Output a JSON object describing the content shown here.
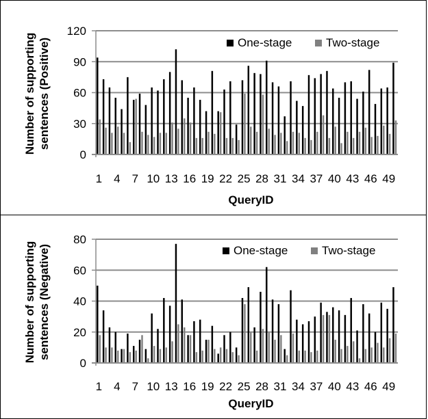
{
  "chart_data": [
    {
      "type": "bar",
      "ylabel": "Number of supporting sentences (Positive)",
      "xlabel": "QueryID",
      "ylim": [
        0,
        120
      ],
      "yticks": [
        0,
        30,
        60,
        90,
        120
      ],
      "grid": true,
      "legend_position": "top-right",
      "categories": [
        1,
        2,
        3,
        4,
        5,
        6,
        7,
        8,
        9,
        10,
        11,
        12,
        13,
        14,
        15,
        16,
        17,
        18,
        19,
        20,
        21,
        22,
        23,
        24,
        25,
        26,
        27,
        28,
        29,
        30,
        31,
        32,
        33,
        34,
        35,
        36,
        37,
        38,
        39,
        40,
        41,
        42,
        43,
        44,
        45,
        46,
        47,
        48,
        49,
        50
      ],
      "xticks": [
        "1",
        "4",
        "7",
        "10",
        "13",
        "16",
        "19",
        "22",
        "25",
        "28",
        "31",
        "34",
        "37",
        "40",
        "43",
        "46",
        "49"
      ],
      "series": [
        {
          "name": "One-stage",
          "color": "#000000",
          "values": [
            94,
            73,
            65,
            55,
            44,
            75,
            53,
            59,
            48,
            65,
            62,
            73,
            80,
            102,
            72,
            55,
            65,
            53,
            42,
            81,
            42,
            63,
            71,
            29,
            72,
            86,
            79,
            78,
            91,
            70,
            66,
            37,
            71,
            52,
            47,
            77,
            74,
            78,
            81,
            64,
            55,
            70,
            71,
            54,
            61,
            82,
            49,
            64,
            65,
            89
          ]
        },
        {
          "name": "Two-stage",
          "color": "#808080",
          "values": [
            34,
            26,
            21,
            27,
            21,
            12,
            54,
            22,
            19,
            17,
            21,
            21,
            31,
            25,
            35,
            31,
            16,
            16,
            22,
            20,
            41,
            16,
            16,
            14,
            59,
            27,
            22,
            58,
            25,
            19,
            21,
            13,
            22,
            21,
            16,
            14,
            22,
            38,
            16,
            27,
            11,
            22,
            16,
            22,
            26,
            17,
            18,
            28,
            20,
            33
          ]
        }
      ]
    },
    {
      "type": "bar",
      "ylabel": "Number of supporting sentences (Negative)",
      "xlabel": "QueryID",
      "ylim": [
        0,
        80
      ],
      "yticks": [
        0,
        20,
        40,
        60,
        80
      ],
      "grid": true,
      "legend_position": "top-right",
      "categories": [
        1,
        2,
        3,
        4,
        5,
        6,
        7,
        8,
        9,
        10,
        11,
        12,
        13,
        14,
        15,
        16,
        17,
        18,
        19,
        20,
        21,
        22,
        23,
        24,
        25,
        26,
        27,
        28,
        29,
        30,
        31,
        32,
        33,
        34,
        35,
        36,
        37,
        38,
        39,
        40,
        41,
        42,
        43,
        44,
        45,
        46,
        47,
        48,
        49,
        50
      ],
      "xticks": [
        "1",
        "4",
        "7",
        "10",
        "13",
        "16",
        "19",
        "22",
        "25",
        "28",
        "31",
        "34",
        "37",
        "40",
        "43",
        "46",
        "49"
      ],
      "series": [
        {
          "name": "One-stage",
          "color": "#000000",
          "values": [
            50,
            34,
            23,
            20,
            9,
            19,
            11,
            15,
            9,
            32,
            22,
            42,
            37,
            77,
            41,
            18,
            27,
            28,
            15,
            24,
            6,
            18,
            20,
            10,
            42,
            49,
            23,
            46,
            62,
            41,
            38,
            9,
            47,
            28,
            25,
            27,
            30,
            39,
            33,
            36,
            34,
            31,
            42,
            21,
            38,
            32,
            20,
            39,
            35,
            49
          ]
        },
        {
          "name": "Two-stage",
          "color": "#808080",
          "values": [
            18,
            10,
            10,
            8,
            9,
            7,
            8,
            18,
            3,
            11,
            9,
            10,
            14,
            25,
            23,
            18,
            7,
            8,
            15,
            9,
            10,
            9,
            7,
            5,
            38,
            20,
            8,
            22,
            20,
            15,
            18,
            5,
            19,
            8,
            8,
            7,
            8,
            31,
            31,
            15,
            9,
            11,
            14,
            3,
            9,
            10,
            13,
            10,
            16,
            19
          ]
        }
      ]
    }
  ]
}
